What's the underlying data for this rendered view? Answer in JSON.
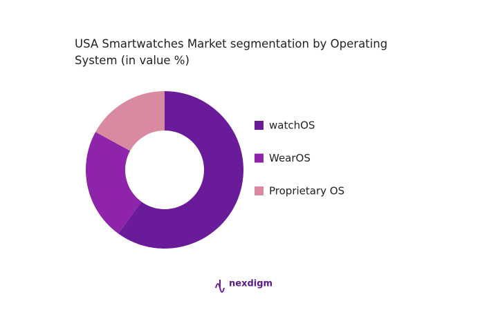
{
  "chart_data": {
    "type": "pie",
    "title": "USA Smartwatches Market segmentation by Operating System (in value %)",
    "categories": [
      "watchOS",
      "WearOS",
      "Proprietary OS"
    ],
    "values": [
      60,
      23,
      17
    ],
    "colors": [
      "#6a1b9a",
      "#8e24aa",
      "#d98aa0"
    ],
    "donut": true,
    "logo": "nexdigm"
  }
}
